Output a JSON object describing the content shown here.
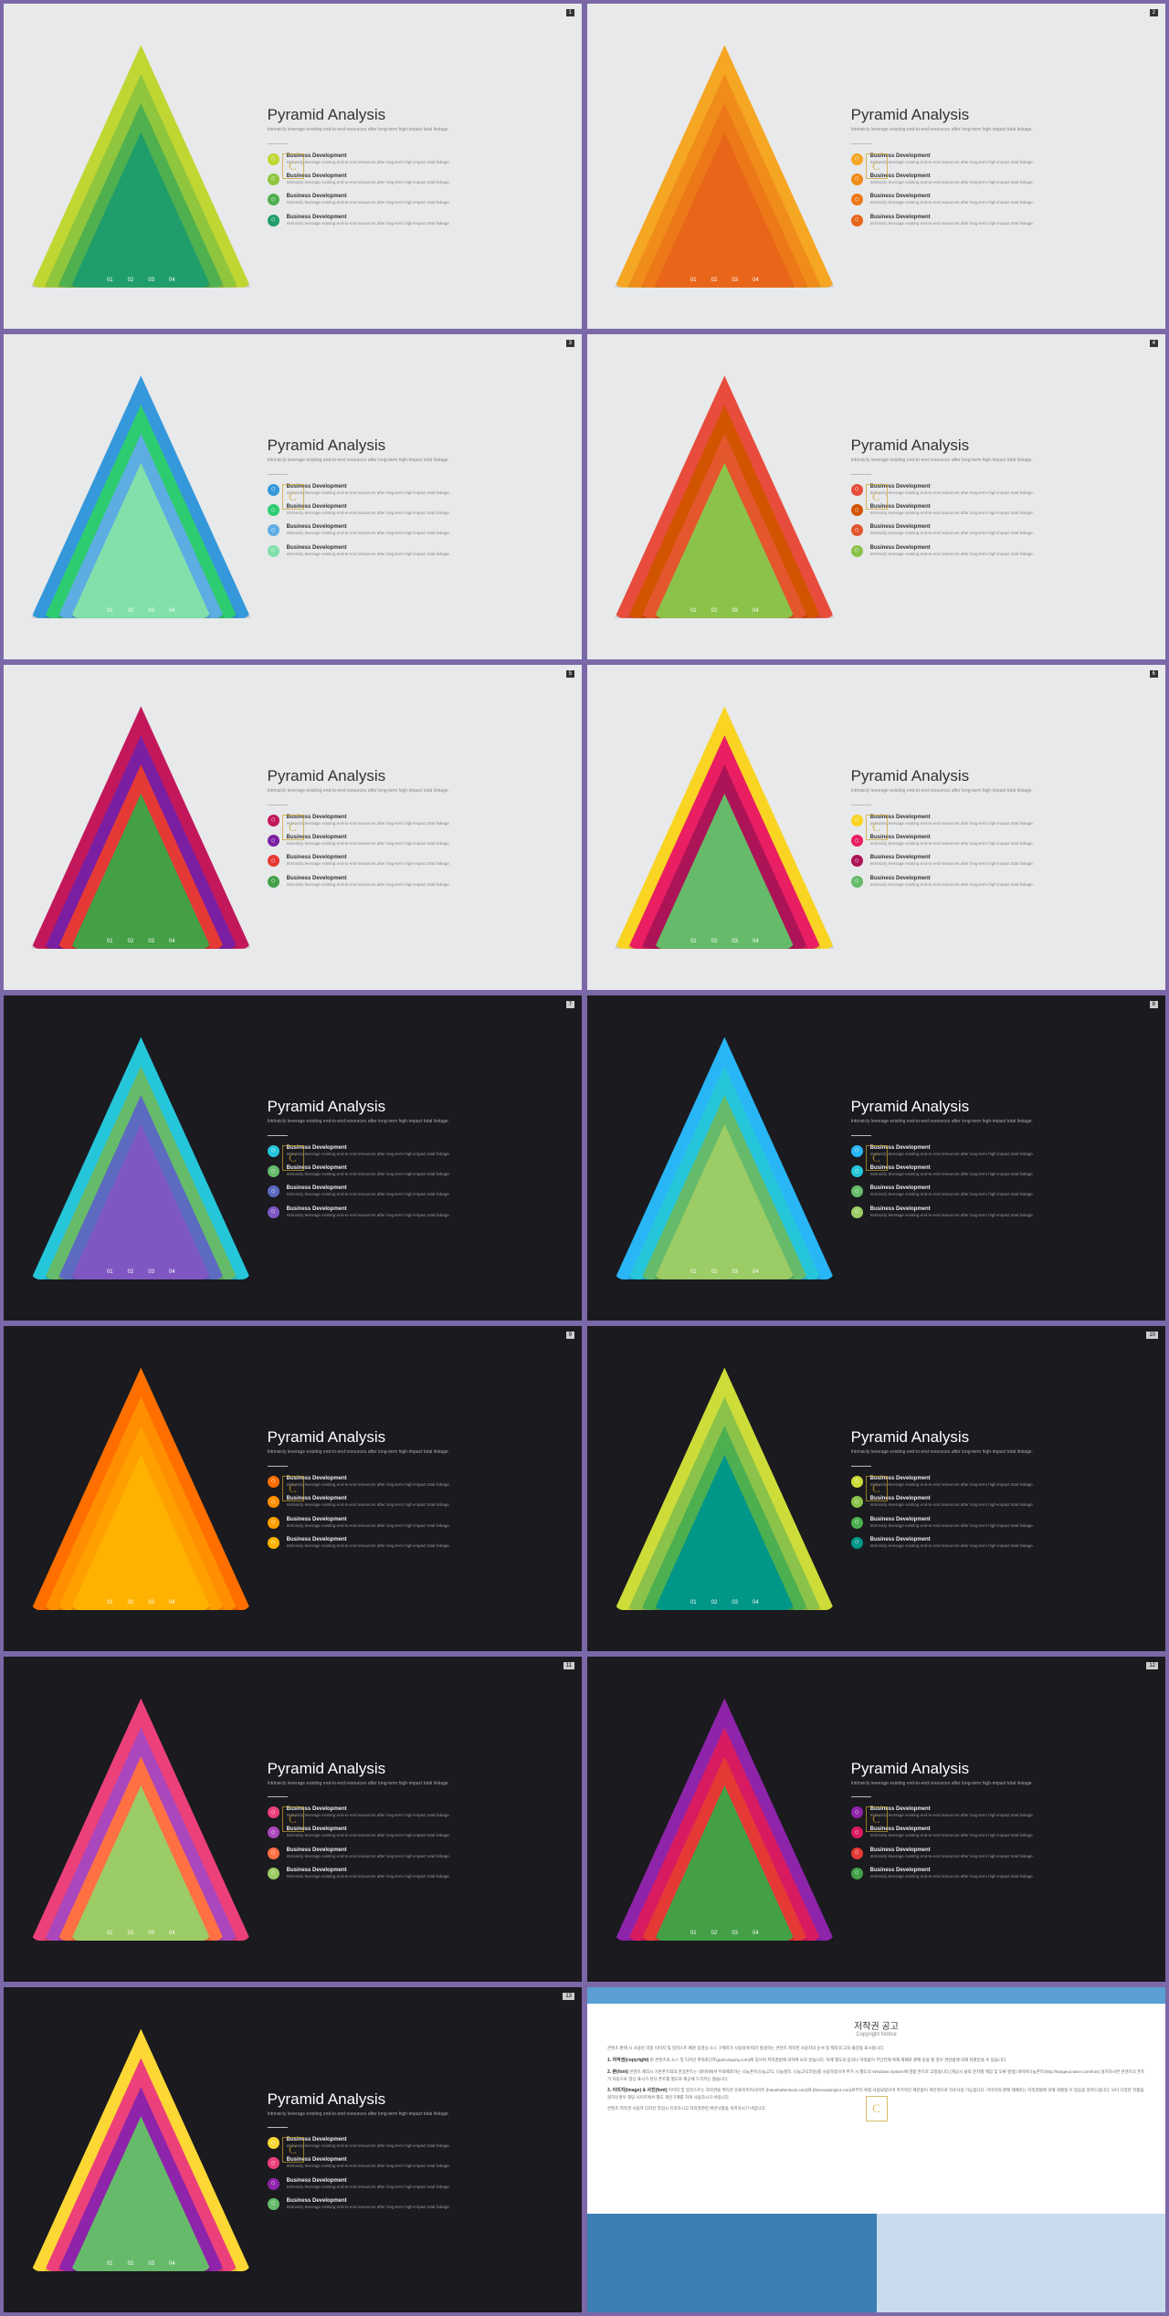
{
  "common": {
    "title": "Pyramid Analysis",
    "subtitle": "Intrinsicly leverage existing end-to-end resources after long-term high-impact total linkage.",
    "item_title": "Business Development",
    "item_desc": "Intrinsicly leverage existing end-to-end resources after long-term high-impact total linkage.",
    "labels": [
      "01",
      "02",
      "03",
      "04"
    ],
    "watermark": "C"
  },
  "slides": [
    {
      "page": "1",
      "theme": "light",
      "tri": [
        "#c0d633",
        "#8fc63d",
        "#4fb04f",
        "#1f9e6b"
      ],
      "bullets": [
        "#c0d633",
        "#8fc63d",
        "#4fb04f",
        "#1f9e6b"
      ]
    },
    {
      "page": "2",
      "theme": "light",
      "tri": [
        "#f5a623",
        "#f08c1a",
        "#ed7818",
        "#e8651a"
      ],
      "bullets": [
        "#f5a623",
        "#f08c1a",
        "#ed7818",
        "#e8651a"
      ]
    },
    {
      "page": "3",
      "theme": "light",
      "tri": [
        "#3498db",
        "#2ecc71",
        "#5dade2",
        "#82e0aa"
      ],
      "bullets": [
        "#3498db",
        "#2ecc71",
        "#5dade2",
        "#82e0aa"
      ]
    },
    {
      "page": "4",
      "theme": "light",
      "tri": [
        "#e74c3c",
        "#d35400",
        "#e4572e",
        "#8bc34a"
      ],
      "bullets": [
        "#e74c3c",
        "#d35400",
        "#e4572e",
        "#8bc34a"
      ]
    },
    {
      "page": "5",
      "theme": "light",
      "tri": [
        "#c2185b",
        "#7b1fa2",
        "#e53935",
        "#43a047"
      ],
      "bullets": [
        "#c2185b",
        "#7b1fa2",
        "#e53935",
        "#43a047"
      ]
    },
    {
      "page": "6",
      "theme": "light",
      "tri": [
        "#f9d423",
        "#e91e63",
        "#ad1457",
        "#66bb6a"
      ],
      "bullets": [
        "#f9d423",
        "#e91e63",
        "#ad1457",
        "#66bb6a"
      ]
    },
    {
      "page": "7",
      "theme": "dark",
      "tri": [
        "#26c6da",
        "#66bb6a",
        "#5c6bc0",
        "#7e57c2"
      ],
      "bullets": [
        "#26c6da",
        "#66bb6a",
        "#5c6bc0",
        "#7e57c2"
      ]
    },
    {
      "page": "8",
      "theme": "dark",
      "tri": [
        "#29b6f6",
        "#26c6da",
        "#66bb6a",
        "#9ccc65"
      ],
      "bullets": [
        "#29b6f6",
        "#26c6da",
        "#66bb6a",
        "#9ccc65"
      ]
    },
    {
      "page": "9",
      "theme": "dark",
      "tri": [
        "#ff6f00",
        "#ff8f00",
        "#ffa000",
        "#ffb300"
      ],
      "bullets": [
        "#ff6f00",
        "#ff8f00",
        "#ffa000",
        "#ffb300"
      ]
    },
    {
      "page": "10",
      "theme": "dark",
      "tri": [
        "#cddc39",
        "#8bc34a",
        "#4caf50",
        "#009688"
      ],
      "bullets": [
        "#cddc39",
        "#8bc34a",
        "#4caf50",
        "#009688"
      ]
    },
    {
      "page": "11",
      "theme": "dark",
      "tri": [
        "#ec407a",
        "#ab47bc",
        "#ff7043",
        "#9ccc65"
      ],
      "bullets": [
        "#ec407a",
        "#ab47bc",
        "#ff7043",
        "#9ccc65"
      ]
    },
    {
      "page": "12",
      "theme": "dark",
      "tri": [
        "#8e24aa",
        "#d81b60",
        "#e53935",
        "#43a047"
      ],
      "bullets": [
        "#8e24aa",
        "#d81b60",
        "#e53935",
        "#43a047"
      ]
    },
    {
      "page": "13",
      "theme": "dark",
      "tri": [
        "#fdd835",
        "#ec407a",
        "#8e24aa",
        "#66bb6a"
      ],
      "bullets": [
        "#fdd835",
        "#ec407a",
        "#8e24aa",
        "#66bb6a"
      ]
    }
  ],
  "copyright": {
    "title_kr": "저작권 공고",
    "title_en": "Copyright Notice",
    "p1": "콘텐츠 판매 시 사용된 각종 이미지 및 일러스트 배경 동영상 소스 구매자가 사용함에 따라 발생하는 콘텐츠 저작권 사용자의 순서 및 제작의 고의 불양을 표시합니다.",
    "h1": "1. 저작권(copyright)",
    "p2": "본 콘텐츠의 소스 및 디자인 파워포인트(pptcompany.com)에 있으며 저작권법에 의하여 보호 받습니다. 이에 별도의 동의나 허락없이 무단전재 복제 재배포 판매 등을 할 경우 관련법에 의해 처벌받을 수 있습니다.",
    "h2": "2. 본(font)",
    "p3": "콘텐츠 제작시 기본폰트외의 한글폰트는 네이버에서 무료배포하는 나눔폰트(나눔고딕, 나눔명조, 나눔고딕코딩)를 사용하였으며 추가 시 별도의 Windows System에 영향 폰트로 고정됩니다.(제공시 클릭 문자열 깨짐 및 오류 발생) 네이버나눔폰트(http://hangeul.naver.com/font) 설치하시면 콘텐츠의 폰트가 자동으로 정상 표시가 된다 폰트를 별도로 제공해 드리지는 않습니다.",
    "h3": "3. 이미지(image) & 사진(font)",
    "p4": "이미지 및 일러스트는 자작권을 획득한 유료이미지사이트 (hotushutterstock.com)와 (thenounproject.com)로부터 복합 사용되었으며 추가적인 제한없이 개인적으로 자유사용 가능합니다. 이미지의 판매 재배포는 자작권법에 의해 처벌될 수 있음을 알려드립니다. 보다 다양한 작품을 원하신경우 해당 사이트에서 별도 개인구매를 하여 사용하시기 바랍니다.",
    "p5": "콘텐츠 저작권 사용자 디자인 작업시 유의하시고 자작권관련 위반사항을 숙지하시기 바랍니다."
  }
}
